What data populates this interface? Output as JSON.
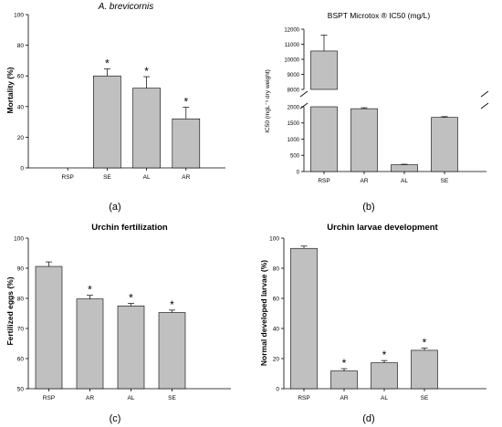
{
  "chart_data": [
    {
      "type": "bar",
      "panel_label": "(a)",
      "title": "A. brevicornis",
      "ylabel": "Mortality (%)",
      "xlabel": "",
      "ylim": [
        0,
        100
      ],
      "yticks": [
        0,
        20,
        40,
        60,
        80,
        100
      ],
      "categories": [
        "RSP",
        "SE",
        "AL",
        "AR"
      ],
      "values": [
        0,
        60,
        52,
        32
      ],
      "errors": [
        0,
        4.5,
        7.5,
        7.5
      ],
      "significance": [
        "",
        "*",
        "*",
        "*"
      ]
    },
    {
      "type": "bar",
      "panel_label": "(b)",
      "title": "BSPT Microtox ® IC50 (mg/L)",
      "ylabel": "IC50 (mgL⁻¹ dry weight)",
      "xlabel": "",
      "ylim": [
        0,
        12000
      ],
      "axis_break": [
        2000,
        8000
      ],
      "yticks_lower": [
        0,
        500,
        1000,
        1500,
        2000
      ],
      "yticks_upper": [
        8000,
        9000,
        10000,
        11000,
        12000
      ],
      "categories": [
        "RSP",
        "AR",
        "AL",
        "SE"
      ],
      "values": [
        10550,
        1940,
        210,
        1670
      ],
      "errors": [
        1050,
        30,
        15,
        25
      ],
      "significance": [
        "",
        "",
        "",
        ""
      ]
    },
    {
      "type": "bar",
      "panel_label": "(c)",
      "title": "Urchin fertilization",
      "ylabel": "Fertilized eggs (%)",
      "xlabel": "",
      "ylim": [
        50,
        100
      ],
      "yticks": [
        50,
        60,
        70,
        80,
        90,
        100
      ],
      "categories": [
        "RSP",
        "AR",
        "AL",
        "SE"
      ],
      "values": [
        90.6,
        79.8,
        77.5,
        75.3
      ],
      "errors": [
        1.5,
        1.2,
        0.8,
        0.8
      ],
      "significance": [
        "",
        "*",
        "*",
        "*"
      ]
    },
    {
      "type": "bar",
      "panel_label": "(d)",
      "title": "Urchin larvae development",
      "ylabel": "Normal developed larvae (%)",
      "xlabel": "",
      "ylim": [
        0,
        100
      ],
      "yticks": [
        0,
        20,
        40,
        60,
        80,
        100
      ],
      "categories": [
        "RSP",
        "AR",
        "AL",
        "SE"
      ],
      "values": [
        93.2,
        11.8,
        17.2,
        25.5
      ],
      "errors": [
        1.5,
        1.5,
        1.5,
        1.5
      ],
      "significance": [
        "",
        "*",
        "*",
        "*"
      ]
    }
  ]
}
